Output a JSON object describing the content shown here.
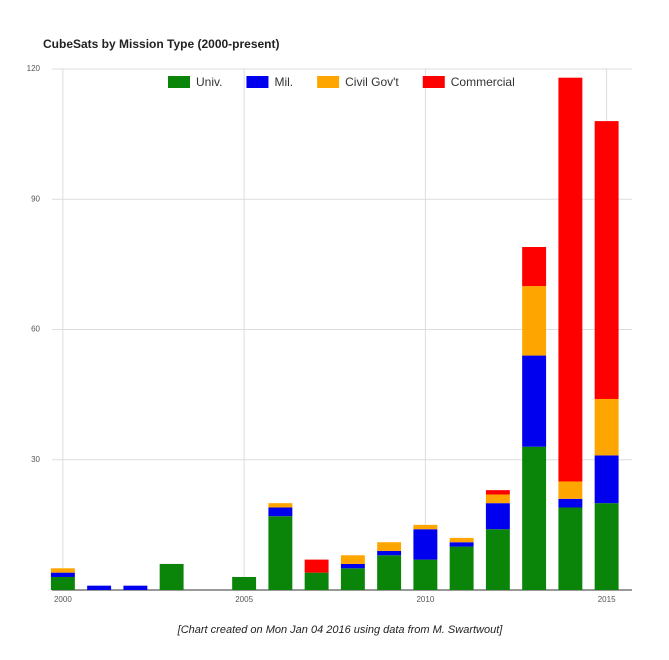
{
  "chart_data": {
    "type": "stacked-bar",
    "title": "CubeSats by Mission Type (2000-present)",
    "footnote": "[Chart created on Mon Jan 04 2016 using data from M. Swartwout]",
    "x": [
      2000,
      2001,
      2002,
      2003,
      2004,
      2005,
      2006,
      2007,
      2008,
      2009,
      2010,
      2011,
      2012,
      2013,
      2014,
      2015
    ],
    "series": [
      {
        "name": "Univ.",
        "color": "#0a850a",
        "values": [
          3,
          0,
          0,
          6,
          0,
          3,
          17,
          4,
          5,
          8,
          7,
          10,
          14,
          33,
          19,
          20
        ]
      },
      {
        "name": "Mil.",
        "color": "#0000ee",
        "values": [
          1,
          1,
          1,
          0,
          0,
          0,
          2,
          0,
          1,
          1,
          7,
          1,
          6,
          21,
          2,
          11
        ]
      },
      {
        "name": "Civil Gov't",
        "color": "#ffa500",
        "values": [
          1,
          0,
          0,
          0,
          0,
          0,
          1,
          0,
          2,
          2,
          1,
          1,
          2,
          16,
          4,
          13
        ]
      },
      {
        "name": "Commercial",
        "color": "#ff0000",
        "values": [
          0,
          0,
          0,
          0,
          0,
          0,
          0,
          3,
          0,
          0,
          0,
          0,
          1,
          9,
          93,
          64
        ]
      }
    ],
    "xlim": [
      1999.7,
      2015.7
    ],
    "xticks": [
      2000,
      2005,
      2010,
      2015
    ],
    "ylim": [
      0,
      120
    ],
    "yticks": [
      0,
      30,
      60,
      90,
      120
    ],
    "grid": true,
    "legend": "top"
  }
}
